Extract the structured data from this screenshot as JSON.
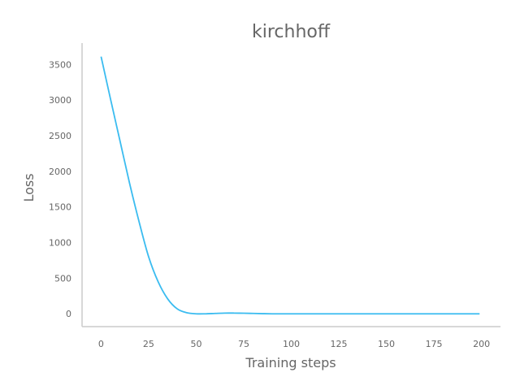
{
  "chart_data": {
    "type": "line",
    "title": "kirchhoff",
    "xlabel": "Training steps",
    "ylabel": "Loss",
    "xlim": [
      -10,
      210
    ],
    "ylim": [
      -180,
      3800
    ],
    "xticks": [
      0,
      25,
      50,
      75,
      100,
      125,
      150,
      175,
      200
    ],
    "yticks": [
      0,
      500,
      1000,
      1500,
      2000,
      2500,
      3000,
      3500
    ],
    "grid": false,
    "series": [
      {
        "color": "#3bbcf0",
        "x": [
          0,
          5,
          10,
          15,
          20,
          25,
          30,
          35,
          40,
          45,
          50,
          55,
          60,
          65,
          70,
          75,
          80,
          85,
          90,
          95,
          100,
          110,
          120,
          130,
          140,
          150,
          160,
          170,
          180,
          190,
          199
        ],
        "y": [
          3610,
          3010,
          2420,
          1830,
          1290,
          800,
          450,
          210,
          70,
          15,
          0,
          0,
          5,
          10,
          10,
          8,
          5,
          2,
          0,
          0,
          0,
          0,
          0,
          0,
          0,
          0,
          0,
          0,
          0,
          0,
          0
        ]
      }
    ]
  }
}
